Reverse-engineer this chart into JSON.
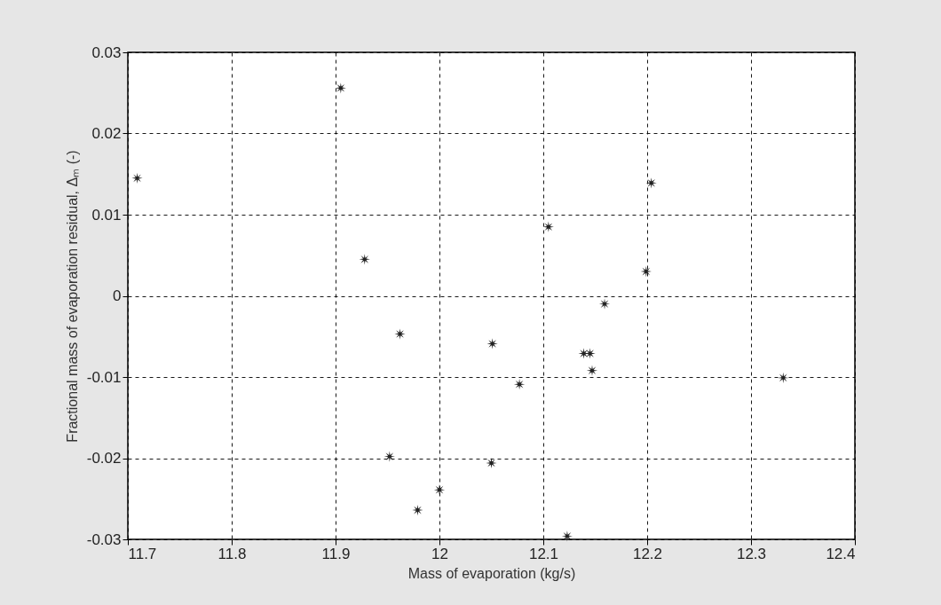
{
  "chart_data": {
    "type": "scatter",
    "xlabel": "Mass of evaporation (kg/s)",
    "ylabel": "Fractional mass of evaporation residual, Δₘ (-)",
    "x": [
      11.709,
      11.905,
      11.928,
      12.204,
      12.105,
      12.199,
      12.159,
      11.962,
      12.051,
      12.077,
      11.952,
      12.05,
      12.0,
      11.979,
      12.139,
      12.145,
      12.147,
      12.331,
      12.123
    ],
    "series": [
      {
        "color": "#222222",
        "values": [
          0.0145,
          0.0256,
          0.0045,
          0.0139,
          0.0085,
          0.003,
          -0.001,
          -0.0047,
          -0.0059,
          -0.0109,
          -0.0198,
          -0.0206,
          -0.0239,
          -0.0264,
          -0.0071,
          -0.0071,
          -0.0092,
          -0.0101,
          -0.0296
        ]
      }
    ],
    "xlim": [
      11.7,
      12.4
    ],
    "xticks": [
      11.7,
      11.8,
      11.9,
      12,
      12.1,
      12.2,
      12.3,
      12.4
    ],
    "ylim": [
      -0.03,
      0.03
    ],
    "yticks": [
      -0.03,
      -0.02,
      -0.01,
      0,
      0.01,
      0.02,
      0.03
    ],
    "grid": true,
    "marker": "star",
    "legend": false
  }
}
